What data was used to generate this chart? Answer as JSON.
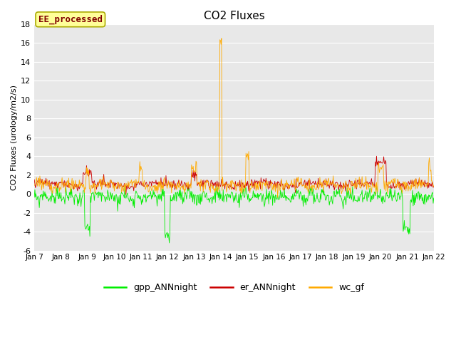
{
  "title": "CO2 Fluxes",
  "ylabel": "CO2 Fluxes (urology/m2/s)",
  "ylim": [
    -6,
    18
  ],
  "yticks": [
    -6,
    -4,
    -2,
    0,
    2,
    4,
    6,
    8,
    10,
    12,
    14,
    16,
    18
  ],
  "x_tick_labels": [
    "Jan 7",
    "Jan 8",
    "Jan 9",
    "Jan 10",
    "Jan 11",
    "Jan 12",
    "Jan 13",
    "Jan 14",
    "Jan 15",
    "Jan 16",
    "Jan 17",
    "Jan 18",
    "Jan 19",
    "Jan 20",
    "Jan 21",
    "Jan 22"
  ],
  "legend_labels": [
    "gpp_ANNnight",
    "er_ANNnight",
    "wc_gf"
  ],
  "legend_colors": [
    "#00ee00",
    "#cc0000",
    "#ffaa00"
  ],
  "annotation_text": "EE_processed",
  "annotation_color": "#800000",
  "annotation_bg": "#ffff99",
  "annotation_border": "#aaaa00",
  "plot_bg": "#e8e8e8",
  "grid_color": "#ffffff",
  "n_points": 720,
  "seed": 99
}
